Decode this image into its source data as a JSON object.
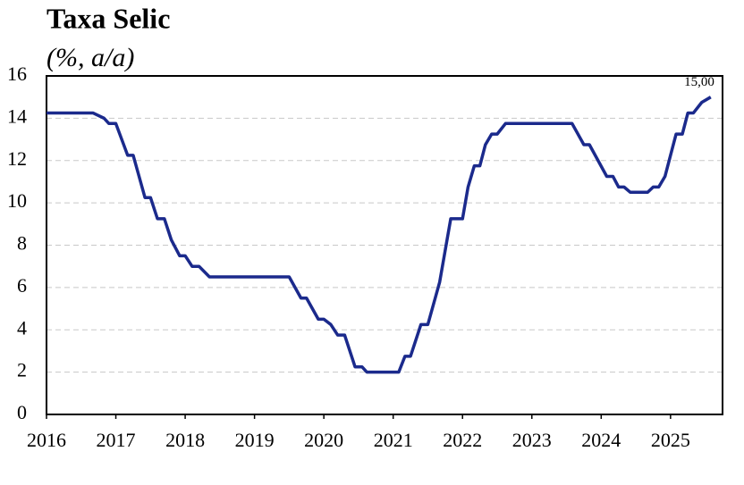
{
  "chart_data": {
    "type": "line",
    "title": "Taxa Selic",
    "subtitle": "(%, a/a)",
    "x": [
      2016.0,
      2016.67,
      2016.83,
      2016.9,
      2017.0,
      2017.17,
      2017.25,
      2017.42,
      2017.5,
      2017.6,
      2017.7,
      2017.8,
      2017.92,
      2018.0,
      2018.1,
      2018.2,
      2018.35,
      2019.5,
      2019.67,
      2019.75,
      2019.92,
      2020.0,
      2020.1,
      2020.2,
      2020.3,
      2020.45,
      2020.55,
      2020.62,
      2021.08,
      2021.17,
      2021.25,
      2021.4,
      2021.5,
      2021.67,
      2021.83,
      2022.0,
      2022.08,
      2022.17,
      2022.25,
      2022.33,
      2022.42,
      2022.5,
      2022.62,
      2023.58,
      2023.75,
      2023.83,
      2024.08,
      2024.17,
      2024.25,
      2024.33,
      2024.42,
      2024.67,
      2024.75,
      2024.83,
      2024.92,
      2025.0,
      2025.08,
      2025.17,
      2025.25,
      2025.33,
      2025.45,
      2025.58
    ],
    "values": [
      14.25,
      14.25,
      14.0,
      13.75,
      13.75,
      12.25,
      12.25,
      10.25,
      10.25,
      9.25,
      9.25,
      8.25,
      7.5,
      7.5,
      7.0,
      7.0,
      6.5,
      6.5,
      5.5,
      5.5,
      4.5,
      4.5,
      4.25,
      3.75,
      3.75,
      2.25,
      2.25,
      2.0,
      2.0,
      2.75,
      2.75,
      4.25,
      4.25,
      6.25,
      9.25,
      9.25,
      10.75,
      11.75,
      11.75,
      12.75,
      13.25,
      13.25,
      13.75,
      13.75,
      12.75,
      12.75,
      11.25,
      11.25,
      10.75,
      10.75,
      10.5,
      10.5,
      10.75,
      10.75,
      11.25,
      12.25,
      13.25,
      13.25,
      14.25,
      14.25,
      14.75,
      15.0
    ],
    "value_labels": [
      null,
      null,
      null,
      null,
      null,
      null,
      null,
      null,
      null,
      null,
      null,
      null,
      null,
      null,
      null,
      null,
      null,
      null,
      null,
      null,
      null,
      null,
      null,
      null,
      null,
      null,
      null,
      null,
      null,
      null,
      null,
      null,
      null,
      null,
      null,
      null,
      null,
      null,
      null,
      null,
      null,
      null,
      null,
      null,
      null,
      null,
      null,
      null,
      null,
      null,
      null,
      null,
      null,
      null,
      null,
      null,
      null,
      null,
      null,
      null,
      null,
      "15,00"
    ],
    "color": "#1b2a8c",
    "xlim": [
      2016,
      2025.75
    ],
    "xticks": [
      2016,
      2017,
      2018,
      2019,
      2020,
      2021,
      2022,
      2023,
      2024,
      2025
    ],
    "ylim": [
      0,
      16
    ],
    "yticks": [
      0,
      2,
      4,
      6,
      8,
      10,
      12,
      14,
      16
    ],
    "grid": true
  }
}
